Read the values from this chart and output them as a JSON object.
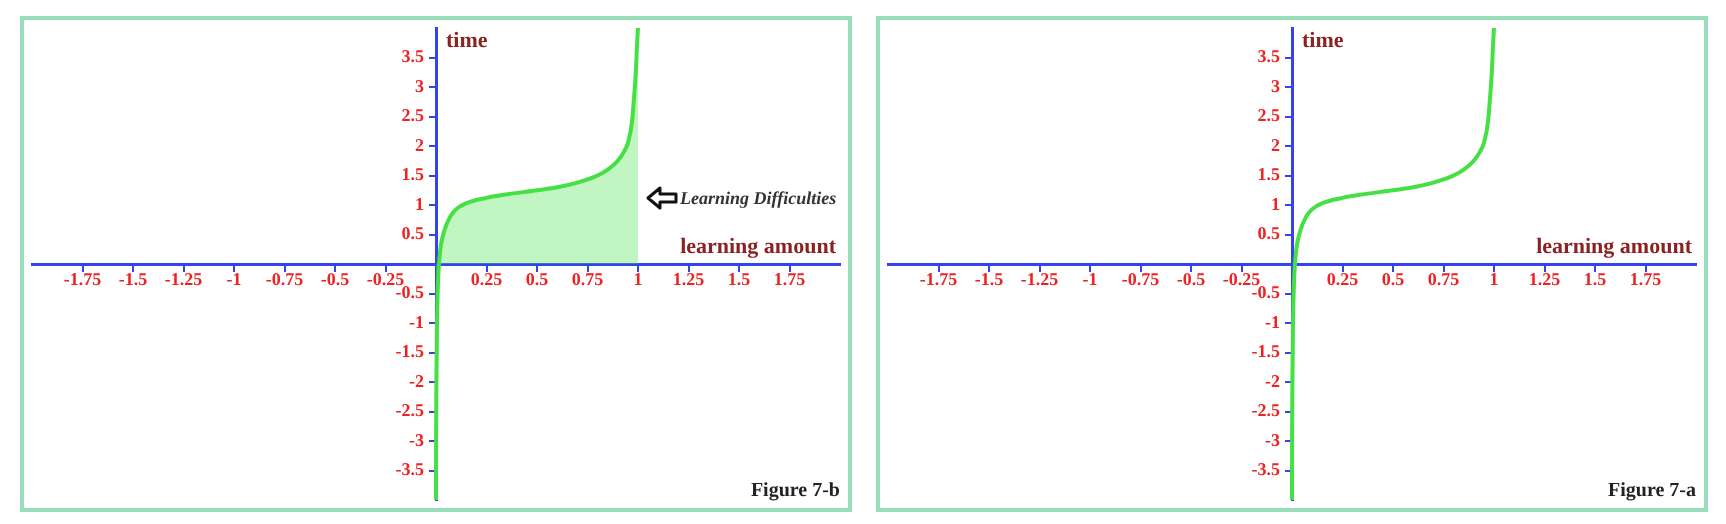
{
  "chart_data": [
    {
      "type": "area",
      "xlabel": "learning amount",
      "ylabel": "time",
      "xlim": [
        -2,
        2
      ],
      "ylim": [
        -4,
        4
      ],
      "xticks": [
        -1.75,
        -1.5,
        -1.25,
        -1,
        -0.75,
        -0.5,
        -0.25,
        0.25,
        0.5,
        0.75,
        1,
        1.25,
        1.5,
        1.75
      ],
      "yticks": [
        -3.5,
        -3,
        -2.5,
        -2,
        -1.5,
        -1,
        -0.5,
        0.5,
        1,
        1.5,
        2,
        2.5,
        3,
        3.5
      ],
      "x": [
        0,
        0.0005,
        0.002,
        0.005,
        0.01,
        0.02,
        0.04,
        0.07,
        0.1,
        0.15,
        0.25,
        0.35,
        0.5,
        0.6,
        0.7,
        0.8,
        0.85,
        0.9,
        0.93,
        0.95,
        0.97,
        0.98,
        0.99,
        0.995,
        1
      ],
      "series": [
        {
          "color": "#44e044",
          "values": [
            -4,
            -3,
            -2,
            -1,
            -0.3,
            0.2,
            0.55,
            0.8,
            0.93,
            1.03,
            1.12,
            1.18,
            1.25,
            1.3,
            1.38,
            1.5,
            1.6,
            1.75,
            1.9,
            2.05,
            2.4,
            2.8,
            3.3,
            3.7,
            4
          ]
        }
      ],
      "annotations": [
        {
          "text": "Learning Difficulties",
          "x": 1,
          "y": 1.1
        },
        "Figure 7-b"
      ]
    },
    {
      "type": "line",
      "xlabel": "learning amount",
      "ylabel": "time",
      "xlim": [
        -2,
        2
      ],
      "ylim": [
        -4,
        4
      ],
      "xticks": [
        -1.75,
        -1.5,
        -1.25,
        -1,
        -0.75,
        -0.5,
        -0.25,
        0.25,
        0.5,
        0.75,
        1,
        1.25,
        1.5,
        1.75
      ],
      "yticks": [
        -3.5,
        -3,
        -2.5,
        -2,
        -1.5,
        -1,
        -0.5,
        0.5,
        1,
        1.5,
        2,
        2.5,
        3,
        3.5
      ],
      "x": [
        0,
        0.0005,
        0.002,
        0.005,
        0.01,
        0.02,
        0.04,
        0.07,
        0.1,
        0.15,
        0.25,
        0.35,
        0.5,
        0.6,
        0.7,
        0.8,
        0.85,
        0.9,
        0.93,
        0.95,
        0.97,
        0.98,
        0.99,
        0.995,
        1
      ],
      "series": [
        {
          "color": "#44e044",
          "values": [
            -4,
            -3,
            -2,
            -1,
            -0.3,
            0.2,
            0.55,
            0.8,
            0.93,
            1.03,
            1.12,
            1.18,
            1.25,
            1.3,
            1.38,
            1.5,
            1.6,
            1.75,
            1.9,
            2.05,
            2.4,
            2.8,
            3.3,
            3.7,
            4
          ]
        }
      ],
      "annotations": [
        "Figure 7-a"
      ]
    }
  ]
}
